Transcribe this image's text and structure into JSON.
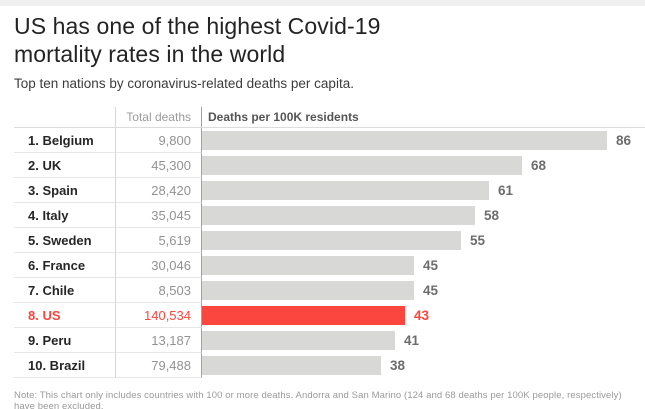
{
  "page": {
    "title_line1": "US has one of the highest Covid-19",
    "title_line2": "mortality rates in the world",
    "subtitle": "Top ten nations by coronavirus-related deaths per capita.",
    "note": "Note: This chart only includes countries with 100 or more deaths. Andorra and San Marino (124 and 68 deaths per 100K people, respectively) have been excluded."
  },
  "colors": {
    "bar_default": "#d8d8d6",
    "highlight_red": "#fa463f",
    "value_label_gray": "#6d6d6d"
  },
  "chart_data": {
    "type": "bar",
    "orientation": "horizontal",
    "title": "US has one of the highest Covid-19 mortality rates in the world",
    "subtitle": "Top ten nations by coronavirus-related deaths per capita.",
    "columns": [
      "Total deaths",
      "Deaths per 100K residents"
    ],
    "value_axis": {
      "label": "Deaths per 100K residents",
      "range": [
        0,
        86
      ]
    },
    "highlighted_country": "US",
    "rows": [
      {
        "rank_label": "1. Belgium",
        "country": "Belgium",
        "total_deaths": "9,800",
        "per_100k": 86,
        "highlighted": false
      },
      {
        "rank_label": "2. UK",
        "country": "UK",
        "total_deaths": "45,300",
        "per_100k": 68,
        "highlighted": false
      },
      {
        "rank_label": "3. Spain",
        "country": "Spain",
        "total_deaths": "28,420",
        "per_100k": 61,
        "highlighted": false
      },
      {
        "rank_label": "4. Italy",
        "country": "Italy",
        "total_deaths": "35,045",
        "per_100k": 58,
        "highlighted": false
      },
      {
        "rank_label": "5. Sweden",
        "country": "Sweden",
        "total_deaths": "5,619",
        "per_100k": 55,
        "highlighted": false
      },
      {
        "rank_label": "6. France",
        "country": "France",
        "total_deaths": "30,046",
        "per_100k": 45,
        "highlighted": false
      },
      {
        "rank_label": "7. Chile",
        "country": "Chile",
        "total_deaths": "8,503",
        "per_100k": 45,
        "highlighted": false
      },
      {
        "rank_label": "8. US",
        "country": "US",
        "total_deaths": "140,534",
        "per_100k": 43,
        "highlighted": true
      },
      {
        "rank_label": "9. Peru",
        "country": "Peru",
        "total_deaths": "13,187",
        "per_100k": 41,
        "highlighted": false
      },
      {
        "rank_label": "10. Brazil",
        "country": "Brazil",
        "total_deaths": "79,488",
        "per_100k": 38,
        "highlighted": false
      }
    ]
  }
}
